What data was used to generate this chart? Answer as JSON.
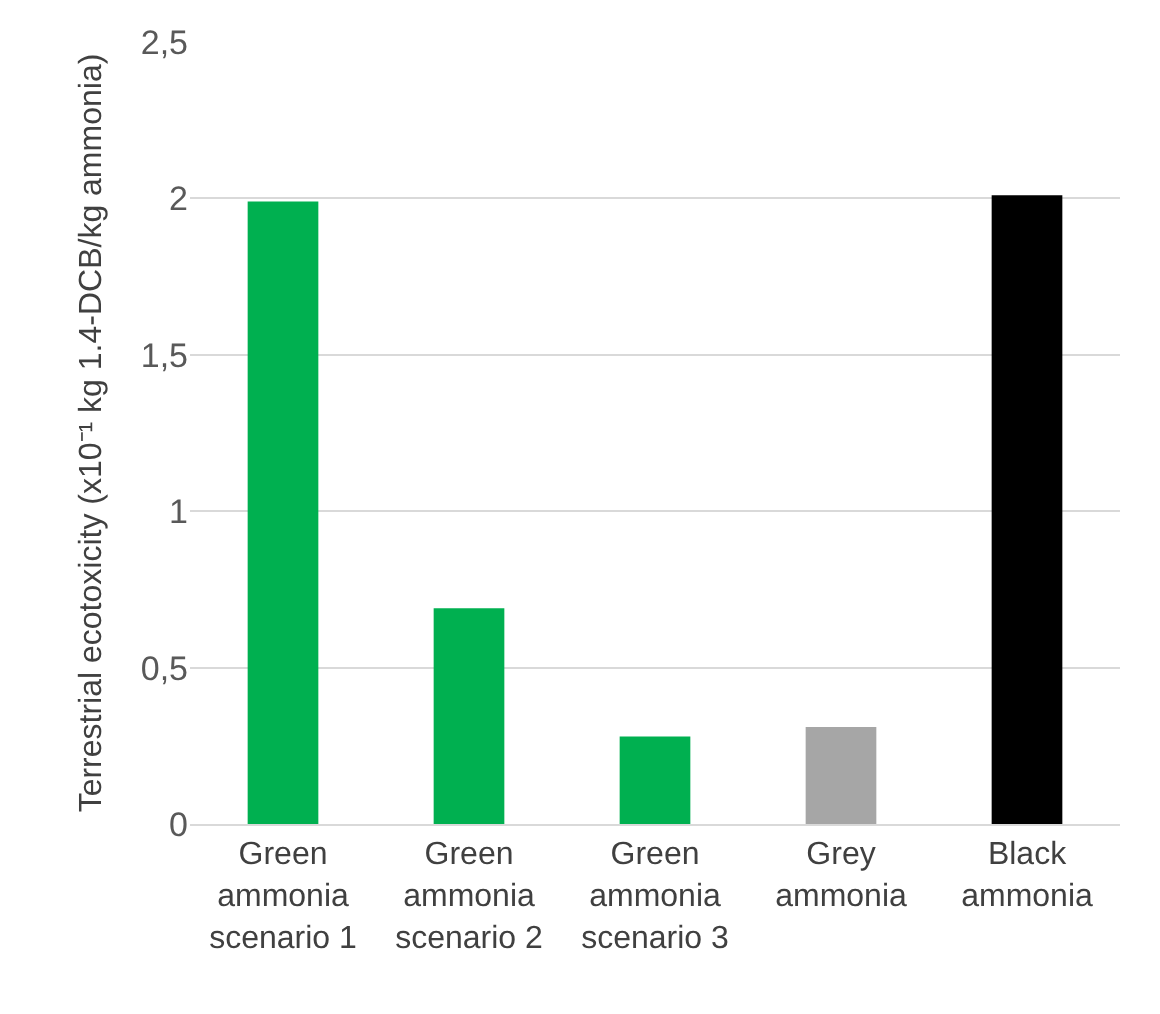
{
  "chart_data": {
    "type": "bar",
    "ylabel": "Terrestrial ecotoxicity (x10⁻¹ kg 1.4-DCB/kg ammonia)",
    "categories": [
      "Green ammonia scenario 1",
      "Green ammonia scenario 2",
      "Green ammonia scenario 3",
      "Grey ammonia",
      "Black ammonia"
    ],
    "values": [
      1.99,
      0.69,
      0.28,
      0.31,
      2.01
    ],
    "colors": [
      "#00b050",
      "#00b050",
      "#00b050",
      "#a6a6a6",
      "#000000"
    ],
    "ylim": [
      0,
      2.5
    ],
    "yticks": [
      {
        "value": 0,
        "label": "0"
      },
      {
        "value": 0.5,
        "label": "0,5"
      },
      {
        "value": 1,
        "label": "1"
      },
      {
        "value": 1.5,
        "label": "1,5"
      },
      {
        "value": 2,
        "label": "2"
      },
      {
        "value": 2.5,
        "label": "2,5"
      }
    ],
    "grid": "y",
    "legend": false
  }
}
